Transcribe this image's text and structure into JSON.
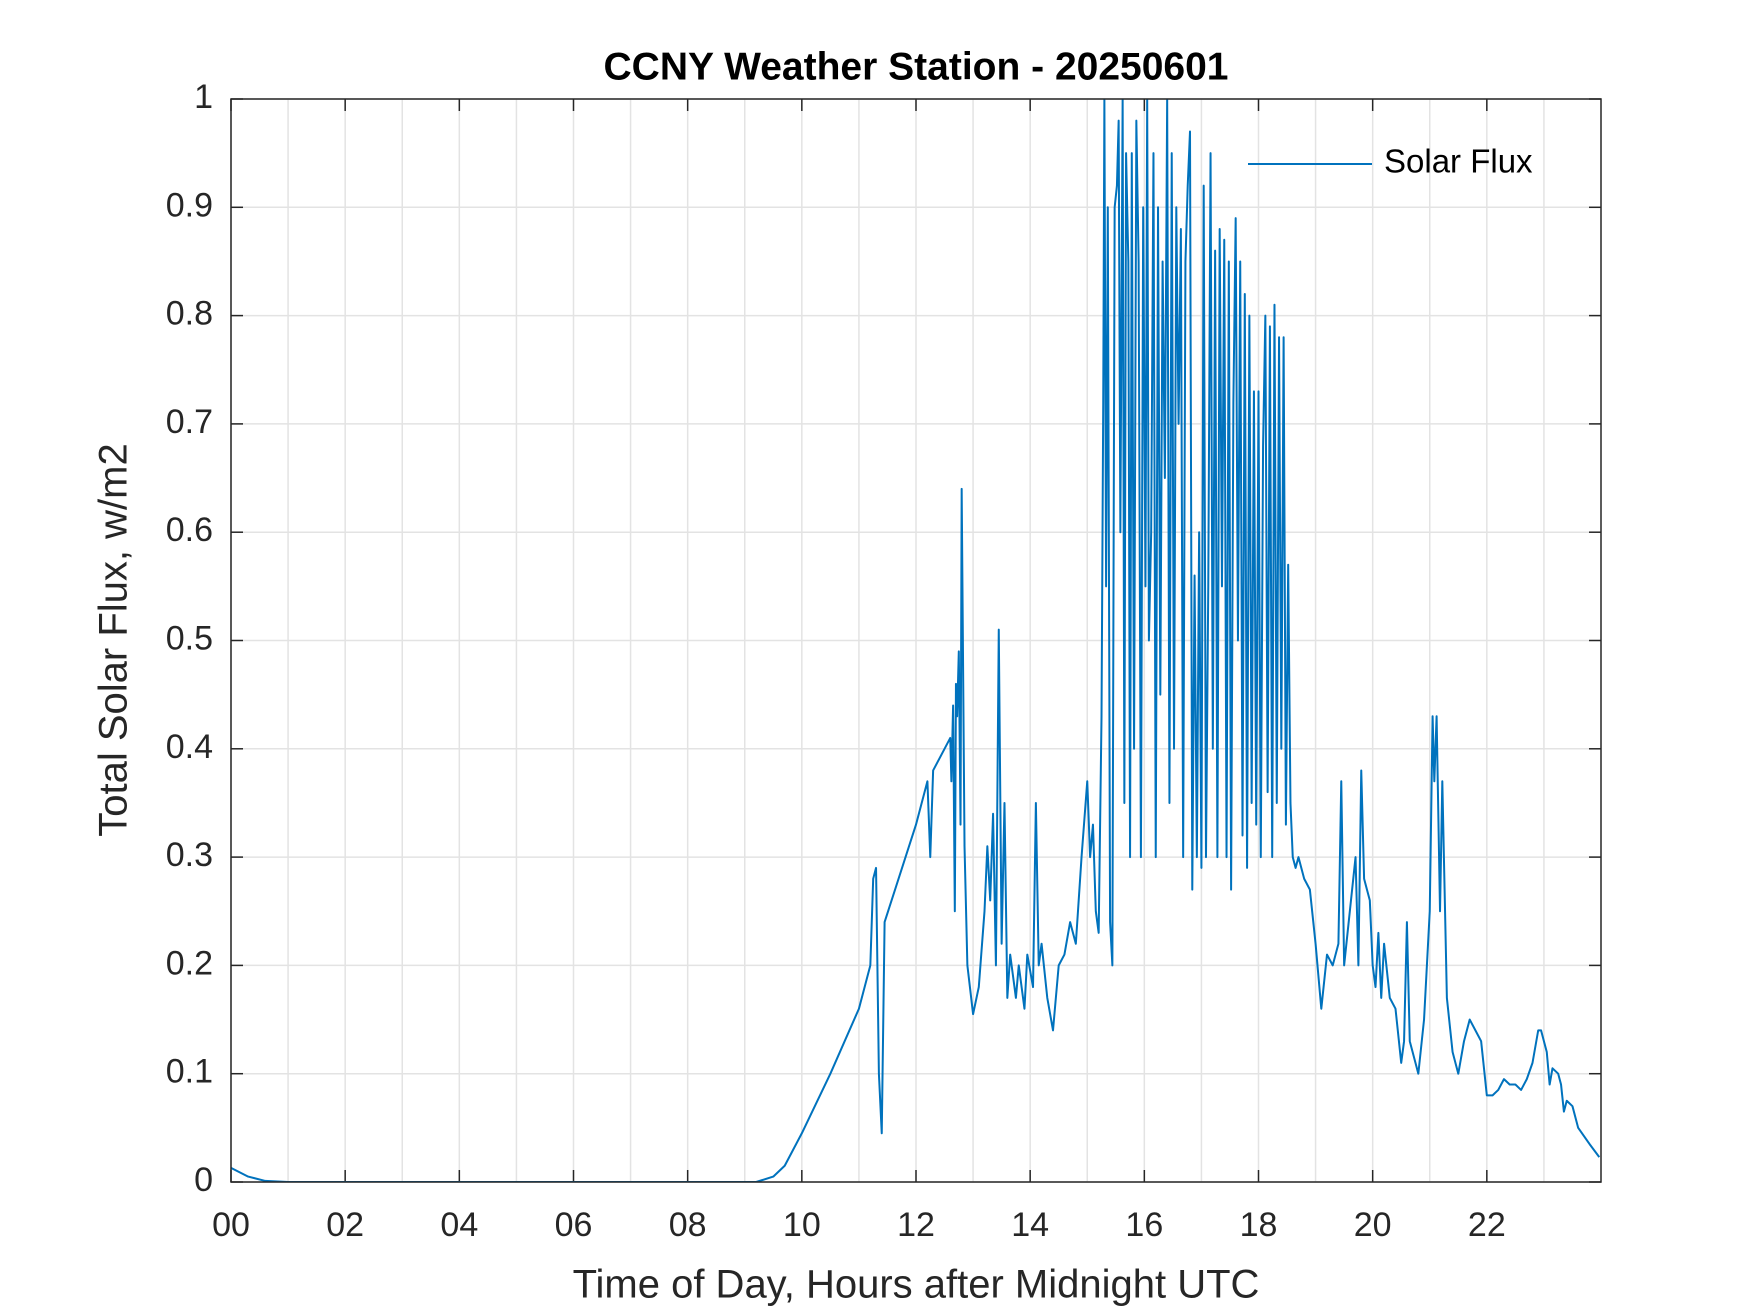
{
  "chart_data": {
    "type": "line",
    "title": "CCNY Weather Station - 20250601",
    "xlabel": "Time of Day, Hours after Midnight UTC",
    "ylabel": "Total Solar Flux, w/m2",
    "xlim": [
      0,
      24
    ],
    "ylim": [
      0,
      1
    ],
    "xticks": [
      {
        "value": 0,
        "label": "00"
      },
      {
        "value": 2,
        "label": "02"
      },
      {
        "value": 4,
        "label": "04"
      },
      {
        "value": 6,
        "label": "06"
      },
      {
        "value": 8,
        "label": "08"
      },
      {
        "value": 10,
        "label": "10"
      },
      {
        "value": 12,
        "label": "12"
      },
      {
        "value": 14,
        "label": "14"
      },
      {
        "value": 16,
        "label": "16"
      },
      {
        "value": 18,
        "label": "18"
      },
      {
        "value": 20,
        "label": "20"
      },
      {
        "value": 22,
        "label": "22"
      }
    ],
    "xminorticks": [
      1,
      3,
      5,
      7,
      9,
      11,
      13,
      15,
      17,
      19,
      21,
      23
    ],
    "yticks": [
      0,
      0.1,
      0.2,
      0.3,
      0.4,
      0.5,
      0.6,
      0.7,
      0.8,
      0.9,
      1
    ],
    "grid": true,
    "legend": "northeast",
    "x": [
      0,
      0.3,
      0.6,
      1,
      3,
      5,
      7,
      9,
      9.2,
      9.5,
      9.7,
      9.85,
      10,
      10.5,
      11,
      11.2,
      11.25,
      11.3,
      11.35,
      11.4,
      11.45,
      12,
      12.2,
      12.25,
      12.3,
      12.5,
      12.6,
      12.62,
      12.65,
      12.68,
      12.7,
      12.72,
      12.75,
      12.78,
      12.8,
      12.85,
      12.9,
      13.0,
      13.1,
      13.2,
      13.25,
      13.3,
      13.35,
      13.4,
      13.45,
      13.5,
      13.55,
      13.6,
      13.65,
      13.75,
      13.8,
      13.9,
      13.95,
      14.05,
      14.1,
      14.15,
      14.2,
      14.3,
      14.4,
      14.5,
      14.6,
      14.7,
      14.8,
      14.9,
      15.0,
      15.05,
      15.1,
      15.15,
      15.2,
      15.25,
      15.28,
      15.3,
      15.33,
      15.36,
      15.4,
      15.44,
      15.48,
      15.52,
      15.55,
      15.58,
      15.62,
      15.65,
      15.68,
      15.72,
      15.75,
      15.78,
      15.82,
      15.86,
      15.9,
      15.94,
      15.98,
      16.02,
      16.05,
      16.08,
      16.12,
      16.16,
      16.2,
      16.24,
      16.28,
      16.32,
      16.36,
      16.4,
      16.44,
      16.48,
      16.52,
      16.56,
      16.6,
      16.64,
      16.68,
      16.72,
      16.76,
      16.8,
      16.84,
      16.88,
      16.92,
      16.96,
      17.0,
      17.04,
      17.08,
      17.12,
      17.16,
      17.2,
      17.24,
      17.28,
      17.32,
      17.36,
      17.4,
      17.44,
      17.48,
      17.52,
      17.56,
      17.6,
      17.64,
      17.68,
      17.72,
      17.76,
      17.8,
      17.84,
      17.88,
      17.92,
      17.96,
      18.0,
      18.04,
      18.08,
      18.12,
      18.16,
      18.2,
      18.24,
      18.28,
      18.32,
      18.36,
      18.4,
      18.44,
      18.48,
      18.52,
      18.56,
      18.6,
      18.65,
      18.7,
      18.8,
      18.9,
      19.0,
      19.1,
      19.2,
      19.3,
      19.4,
      19.45,
      19.5,
      19.6,
      19.7,
      19.75,
      19.8,
      19.85,
      19.95,
      20.0,
      20.05,
      20.1,
      20.15,
      20.2,
      20.3,
      20.4,
      20.5,
      20.55,
      20.6,
      20.65,
      20.75,
      20.8,
      20.9,
      21.0,
      21.05,
      21.08,
      21.12,
      21.18,
      21.22,
      21.3,
      21.4,
      21.5,
      21.6,
      21.7,
      21.8,
      21.9,
      22.0,
      22.1,
      22.2,
      22.3,
      22.4,
      22.5,
      22.6,
      22.7,
      22.8,
      22.9,
      22.95,
      23.05,
      23.1,
      23.15,
      23.25,
      23.3,
      23.35,
      23.4,
      23.5,
      23.6,
      23.8,
      23.97
    ],
    "series": [
      {
        "name": "Solar Flux",
        "color": "#0072bd",
        "values": [
          0.013,
          0.005,
          0.001,
          0,
          0,
          0,
          0,
          0,
          0,
          0.005,
          0.015,
          0.03,
          0.045,
          0.1,
          0.16,
          0.2,
          0.28,
          0.29,
          0.1,
          0.045,
          0.24,
          0.33,
          0.37,
          0.3,
          0.38,
          0.4,
          0.41,
          0.37,
          0.44,
          0.25,
          0.46,
          0.43,
          0.49,
          0.33,
          0.64,
          0.31,
          0.2,
          0.155,
          0.18,
          0.25,
          0.31,
          0.26,
          0.34,
          0.2,
          0.51,
          0.22,
          0.35,
          0.17,
          0.21,
          0.17,
          0.2,
          0.16,
          0.21,
          0.18,
          0.35,
          0.2,
          0.22,
          0.17,
          0.14,
          0.2,
          0.21,
          0.24,
          0.22,
          0.3,
          0.37,
          0.3,
          0.33,
          0.25,
          0.23,
          0.43,
          0.72,
          1,
          0.55,
          0.9,
          0.24,
          0.2,
          0.9,
          0.92,
          0.98,
          0.6,
          1,
          0.35,
          0.95,
          0.85,
          0.3,
          0.95,
          0.4,
          0.98,
          0.85,
          0.3,
          0.9,
          0.55,
          1,
          0.5,
          0.6,
          0.95,
          0.3,
          0.9,
          0.45,
          0.85,
          0.65,
          1,
          0.35,
          0.95,
          0.4,
          0.9,
          0.7,
          0.88,
          0.3,
          0.85,
          0.92,
          0.97,
          0.27,
          0.56,
          0.3,
          0.6,
          0.29,
          0.92,
          0.3,
          0.55,
          0.95,
          0.4,
          0.86,
          0.3,
          0.88,
          0.55,
          0.87,
          0.3,
          0.85,
          0.27,
          0.72,
          0.89,
          0.5,
          0.85,
          0.32,
          0.82,
          0.29,
          0.8,
          0.35,
          0.73,
          0.33,
          0.73,
          0.3,
          0.68,
          0.8,
          0.36,
          0.79,
          0.3,
          0.81,
          0.35,
          0.78,
          0.4,
          0.78,
          0.33,
          0.57,
          0.35,
          0.3,
          0.29,
          0.3,
          0.28,
          0.27,
          0.22,
          0.16,
          0.21,
          0.2,
          0.22,
          0.37,
          0.2,
          0.25,
          0.3,
          0.2,
          0.38,
          0.28,
          0.26,
          0.2,
          0.18,
          0.23,
          0.17,
          0.22,
          0.17,
          0.16,
          0.11,
          0.13,
          0.24,
          0.13,
          0.11,
          0.1,
          0.15,
          0.25,
          0.43,
          0.37,
          0.43,
          0.25,
          0.37,
          0.17,
          0.12,
          0.1,
          0.13,
          0.15,
          0.14,
          0.13,
          0.08,
          0.08,
          0.085,
          0.095,
          0.09,
          0.09,
          0.085,
          0.095,
          0.11,
          0.14,
          0.14,
          0.12,
          0.09,
          0.105,
          0.1,
          0.09,
          0.065,
          0.075,
          0.07,
          0.05,
          0.035,
          0.023
        ]
      }
    ]
  }
}
